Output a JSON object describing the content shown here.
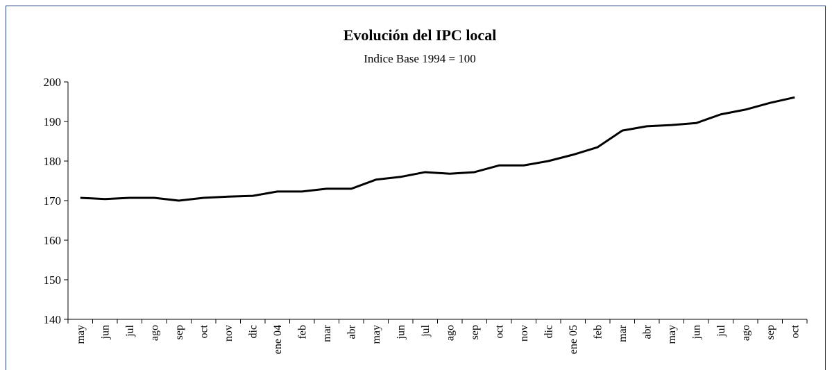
{
  "chart_data": {
    "type": "line",
    "title": "Evolución del IPC local",
    "subtitle": "Indice Base 1994 = 100",
    "categories": [
      "may",
      "jun",
      "jul",
      "ago",
      "sep",
      "oct",
      "nov",
      "dic",
      "ene 04",
      "feb",
      "mar",
      "abr",
      "may",
      "jun",
      "jul",
      "ago",
      "sep",
      "oct",
      "nov",
      "dic",
      "ene 05",
      "feb",
      "mar",
      "abr",
      "may",
      "jun",
      "jul",
      "ago",
      "sep",
      "oct"
    ],
    "values": [
      170.7,
      170.4,
      170.7,
      170.7,
      170.0,
      170.7,
      171.0,
      171.2,
      172.3,
      172.3,
      173.0,
      173.0,
      175.3,
      176.0,
      177.2,
      176.8,
      177.2,
      178.9,
      178.9,
      180.0,
      181.6,
      183.5,
      187.7,
      188.8,
      189.1,
      189.6,
      191.8,
      193.0,
      194.7,
      196.1
    ],
    "color": "#000000",
    "ylim": [
      140,
      200
    ],
    "yticks": [
      140,
      150,
      160,
      170,
      180,
      190,
      200
    ],
    "grid": false
  }
}
